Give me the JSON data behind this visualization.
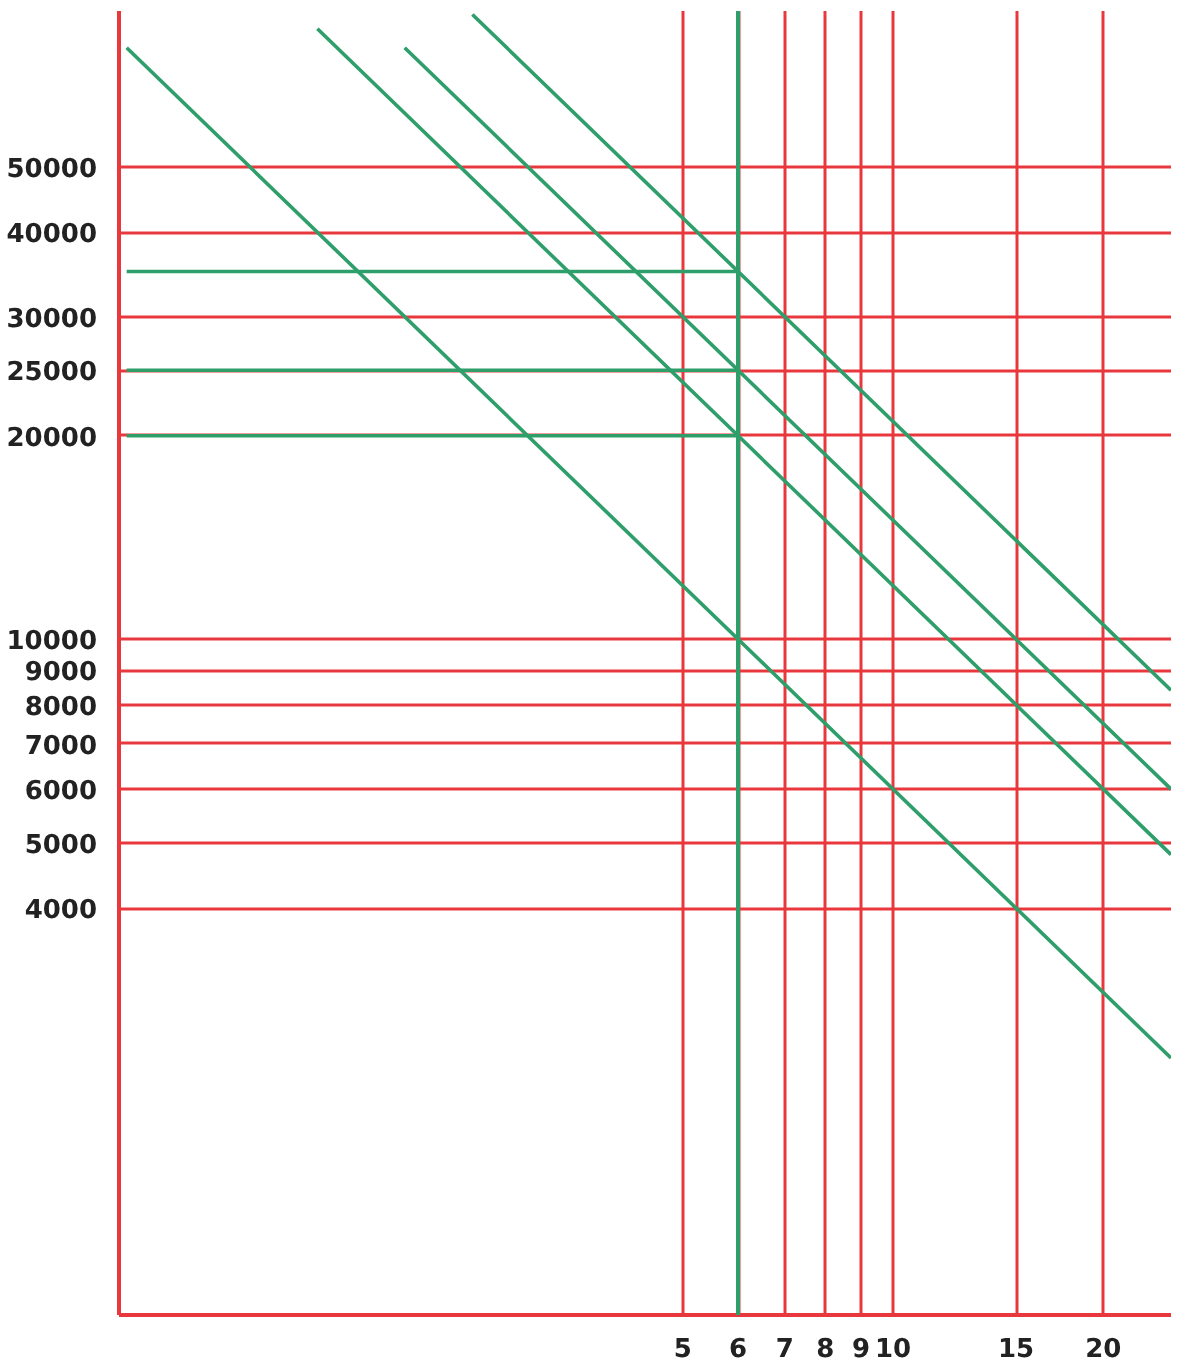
{
  "chart_data": {
    "type": "line",
    "log": "xy",
    "xlim": [
      0.78,
      25
    ],
    "ylim": [
      1000,
      85000
    ],
    "xticks": [
      5,
      6,
      7,
      8,
      9,
      10,
      15,
      20
    ],
    "yticks": [
      4000,
      5000,
      6000,
      7000,
      8000,
      9000,
      10000,
      20000,
      25000,
      30000,
      40000,
      50000
    ],
    "grid": true,
    "line_style": "solid",
    "marker": "none",
    "series": [
      {
        "color": "#2e9e6a",
        "x": [
          0.8,
          25
        ],
        "values": [
          75000,
          2400
        ]
      },
      {
        "color": "#2e9e6a",
        "x": [
          1.5,
          25
        ],
        "values": [
          80000,
          4800
        ]
      },
      {
        "color": "#2e9e6a",
        "x": [
          2,
          25
        ],
        "values": [
          75000,
          6000
        ]
      },
      {
        "color": "#2e9e6a",
        "x": [
          2.5,
          25
        ],
        "values": [
          84000,
          8400
        ]
      },
      {
        "color": "#2e9e6a",
        "x": [
          0.8,
          6
        ],
        "values": [
          35000,
          35000
        ]
      },
      {
        "color": "#2e9e6a",
        "x": [
          0.8,
          6
        ],
        "values": [
          25000,
          25000
        ]
      },
      {
        "color": "#2e9e6a",
        "x": [
          0.8,
          6
        ],
        "values": [
          20000,
          20000
        ]
      }
    ],
    "ref_lines": [
      {
        "axis": "x",
        "value": 6,
        "color": "#2e9e6a"
      }
    ]
  }
}
